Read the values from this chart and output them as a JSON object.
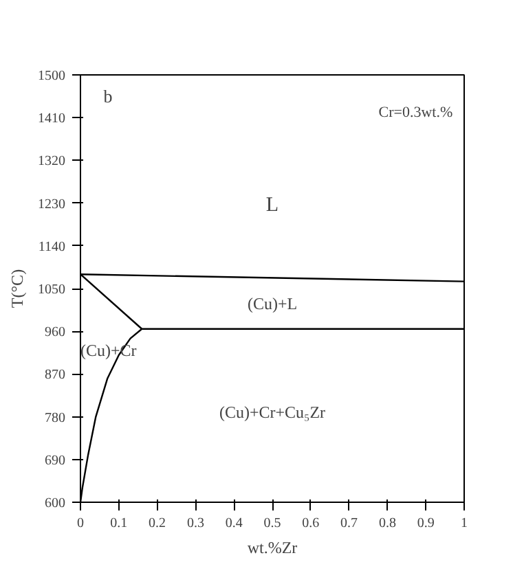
{
  "chart_data": {
    "type": "line",
    "xlabel": "wt.%Zr",
    "ylabel": "T(°C)",
    "xlim": [
      0,
      1
    ],
    "ylim": [
      600,
      1500
    ],
    "xticks": [
      0,
      {
        "value": 0.1,
        "label": "0.1"
      },
      {
        "value": 0.2,
        "label": "0.2"
      },
      {
        "value": 0.3,
        "label": "0.3"
      },
      {
        "value": 0.4,
        "label": "0.4"
      },
      {
        "value": 0.5,
        "label": "0.5"
      },
      {
        "value": 0.6,
        "label": "0.6"
      },
      {
        "value": 0.7,
        "label": "0.7"
      },
      {
        "value": 0.8,
        "label": "0.8"
      },
      {
        "value": 0.9,
        "label": "0.9"
      },
      1
    ],
    "yticks": [
      600,
      690,
      780,
      870,
      960,
      1050,
      1140,
      1230,
      1320,
      1410,
      1500
    ],
    "grid": false,
    "marker": "none",
    "line_style": "solid",
    "series": [
      {
        "color": "#000000",
        "x": [
          0,
          1
        ],
        "values": [
          1080,
          1065
        ]
      },
      {
        "color": "#000000",
        "x": [
          0,
          0.16
        ],
        "values": [
          1080,
          965
        ]
      },
      {
        "color": "#000000",
        "x": [
          0.16,
          1
        ],
        "values": [
          965,
          965
        ]
      },
      {
        "color": "#000000",
        "x": [
          0,
          0.005,
          0.02,
          0.04,
          0.07,
          0.1,
          0.13,
          0.16
        ],
        "values": [
          600,
          630,
          700,
          780,
          860,
          910,
          945,
          965
        ]
      }
    ],
    "annotations": [
      "b",
      "Cr=0.3wt.%",
      "L",
      "(Cu)+L",
      "(Cu)+Cr",
      "(Cu)+Cr+Cu₅Zr"
    ]
  }
}
